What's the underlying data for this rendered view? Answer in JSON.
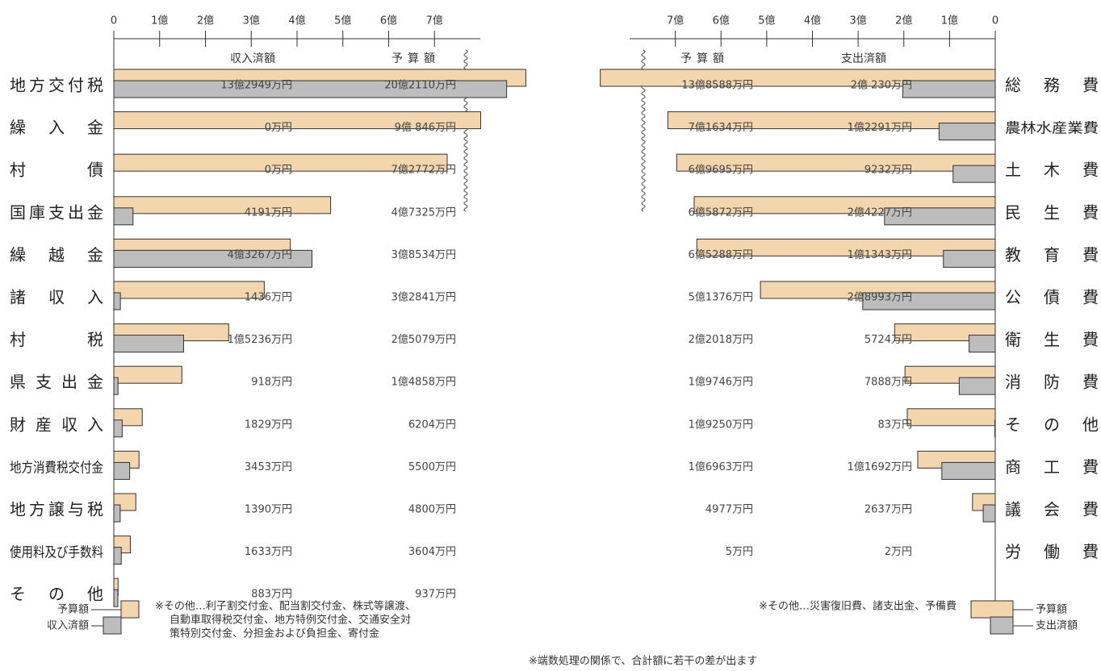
{
  "chart_data": [
    {
      "type": "bar",
      "orientation": "horizontal",
      "reversed": false,
      "axis_break": true,
      "categories": [
        "地方交付税",
        "繰入金",
        "村債",
        "国庫支出金",
        "繰越金",
        "諸収入",
        "村税",
        "県支出金",
        "財産収入",
        "地方消費税交付金",
        "地方譲与税",
        "使用料及び手数料",
        "その他"
      ],
      "xlim": [
        0,
        8
      ],
      "xticks": [
        0,
        {
          "value": 1,
          "label": "1億"
        },
        {
          "value": 2,
          "label": "2億"
        },
        {
          "value": 3,
          "label": "3億"
        },
        {
          "value": 4,
          "label": "4億"
        },
        {
          "value": 5,
          "label": "5億"
        },
        {
          "value": 6,
          "label": "6億"
        },
        {
          "value": 7,
          "label": "7億"
        }
      ],
      "series": [
        {
          "name": "予算額",
          "color": "#f3d6ad",
          "values": [
            20.211,
            9.0846,
            7.2772,
            4.7325,
            3.8534,
            3.2841,
            2.5079,
            1.4858,
            0.6204,
            0.55,
            0.48,
            0.3604,
            0.0937
          ],
          "value_labels": [
            "20億2110万円",
            "9億 846万円",
            "7億2772万円",
            "4億7325万円",
            "3億8534万円",
            "3億2841万円",
            "2億5079万円",
            "1億4858万円",
            "6204万円",
            "5500万円",
            "4800万円",
            "3604万円",
            "937万円"
          ]
        },
        {
          "name": "収入済額",
          "color": "#bdbdbd",
          "values": [
            13.2949,
            0,
            0,
            0.4191,
            4.3267,
            0.1436,
            1.5236,
            0.0918,
            0.1829,
            0.3453,
            0.139,
            0.1633,
            0.0883
          ],
          "value_labels": [
            "13億2949万円",
            "0万円",
            "0万円",
            "4191万円",
            "4億3267万円",
            "1436万円",
            "1億5236万円",
            "918万円",
            "1829万円",
            "3453万円",
            "1390万円",
            "1633万円",
            "883万円"
          ]
        }
      ],
      "note": [
        "※その他…利子割交付金、配当割交付金、株式等譲渡、",
        "自動車取得税交付金、地方特例交付金、交通安全対",
        "策特別交付金、分担金および負担金、寄付金"
      ]
    },
    {
      "type": "bar",
      "orientation": "horizontal",
      "reversed": true,
      "axis_break": true,
      "categories": [
        "総務費",
        "農林水産業費",
        "土木費",
        "民生費",
        "教育費",
        "公債費",
        "衛生費",
        "消防費",
        "その他",
        "商工費",
        "議会費",
        "労働費"
      ],
      "xlim": [
        0,
        8
      ],
      "xticks": [
        0,
        {
          "value": 1,
          "label": "1億"
        },
        {
          "value": 2,
          "label": "2億"
        },
        {
          "value": 3,
          "label": "3億"
        },
        {
          "value": 4,
          "label": "4億"
        },
        {
          "value": 5,
          "label": "5億"
        },
        {
          "value": 6,
          "label": "6億"
        },
        {
          "value": 7,
          "label": "7億"
        }
      ],
      "series": [
        {
          "name": "予算額",
          "color": "#f3d6ad",
          "values": [
            13.8588,
            7.1634,
            6.9695,
            6.5872,
            6.5288,
            5.1376,
            2.2018,
            1.9746,
            1.925,
            1.6963,
            0.4977,
            0.0005
          ],
          "value_labels": [
            "13億8588万円",
            "7億1634万円",
            "6億9695万円",
            "6億5872万円",
            "6億5288万円",
            "5億1376万円",
            "2億2018万円",
            "1億9746万円",
            "1億9250万円",
            "1億6963万円",
            "4977万円",
            "5万円"
          ]
        },
        {
          "name": "支出済額",
          "color": "#bdbdbd",
          "values": [
            2.023,
            1.2291,
            0.9232,
            2.4227,
            1.1343,
            2.8993,
            0.5724,
            0.7888,
            0.0083,
            1.1692,
            0.2637,
            0.0002
          ],
          "value_labels": [
            "2億 230万円",
            "1億2291万円",
            "9232万円",
            "2億4227万円",
            "1億1343万円",
            "2億8993万円",
            "5724万円",
            "7888万円",
            "83万円",
            "1億1692万円",
            "2637万円",
            "2万円"
          ]
        }
      ],
      "note": [
        "※その他…災害復旧費、諸支出金、予備費"
      ]
    }
  ],
  "footnote": "※端数処理の関係で、合計額に若干の差が出ます"
}
